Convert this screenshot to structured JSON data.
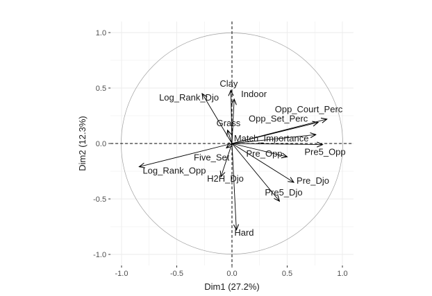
{
  "chart_data": {
    "type": "scatter",
    "subtype": "pca-variable-correlation-circle",
    "title": "",
    "xlabel": "Dim1 (27.2%)",
    "ylabel": "Dim2 (12.3%)",
    "xlim": [
      -1.1,
      1.1
    ],
    "ylim": [
      -1.1,
      1.1
    ],
    "x_ticks": [
      -1.0,
      -0.5,
      0.0,
      0.5,
      1.0
    ],
    "x_tick_labels": [
      "-1.0",
      "-0.5",
      "0.0",
      "0.5",
      "1.0"
    ],
    "y_ticks": [
      -1.0,
      -0.5,
      0.0,
      0.5,
      1.0
    ],
    "y_tick_labels": [
      "-1.0",
      "-0.5",
      "0.0",
      "0.5",
      "1.0"
    ],
    "grid": true,
    "unit_circle": true,
    "reference_lines": "dashed lines at x = 0 and y = 0",
    "arrow_color": "#000000",
    "circle_color": "#a0a0a0",
    "grid_color": "#ebebeb",
    "variables": [
      {
        "name": "Clay",
        "x": -0.01,
        "y": 0.48
      },
      {
        "name": "Log_Rank_Djo",
        "x": -0.27,
        "y": 0.45
      },
      {
        "name": "Indoor",
        "x": 0.02,
        "y": 0.4
      },
      {
        "name": "Opp_Court_Perc",
        "x": 0.86,
        "y": 0.22
      },
      {
        "name": "Grass",
        "x": -0.04,
        "y": 0.12
      },
      {
        "name": "Opp_Set_Perc",
        "x": 0.78,
        "y": 0.19
      },
      {
        "name": "Match_Importance",
        "x": 0.76,
        "y": 0.08
      },
      {
        "name": "Pre5_Opp",
        "x": 0.82,
        "y": -0.01
      },
      {
        "name": "Five_Set",
        "x": -0.05,
        "y": -0.04
      },
      {
        "name": "Log_Rank_Opp",
        "x": -0.84,
        "y": -0.21
      },
      {
        "name": "H2H_Djo",
        "x": -0.1,
        "y": -0.3
      },
      {
        "name": "Pre_Opp",
        "x": 0.5,
        "y": -0.12
      },
      {
        "name": "Pre_Djo",
        "x": 0.56,
        "y": -0.35
      },
      {
        "name": "Pre5_Djo",
        "x": 0.43,
        "y": -0.52
      },
      {
        "name": "Hard",
        "x": 0.04,
        "y": -0.78
      }
    ]
  }
}
